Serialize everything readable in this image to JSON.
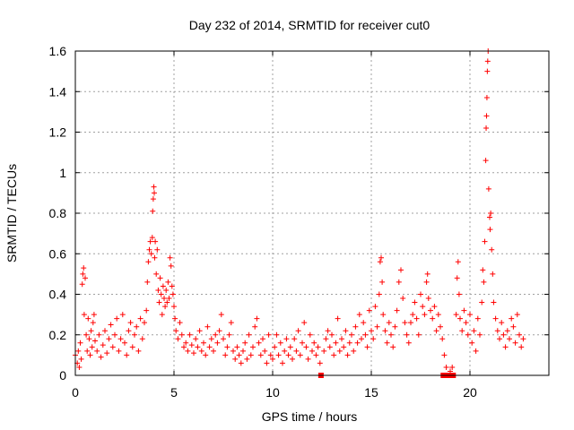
{
  "chart_data": {
    "type": "scatter",
    "title": "Day 232 of 2014, SRMTID for receiver cut0",
    "xlabel": "GPS time / hours",
    "ylabel": "SRMTID / TECUs",
    "xlim": [
      0,
      24
    ],
    "ylim": [
      0,
      1.6
    ],
    "xticks": [
      0,
      5,
      10,
      15,
      20
    ],
    "xtick_labels": [
      "0",
      "5",
      "10",
      "15",
      "20"
    ],
    "yticks": [
      0,
      0.2,
      0.4,
      0.6,
      0.8,
      1.0,
      1.2,
      1.4,
      1.6
    ],
    "ytick_labels": [
      "0",
      "0.2",
      "0.4",
      "0.6",
      "0.8",
      "1",
      "1.2",
      "1.4",
      "1.6"
    ],
    "grid": true,
    "marker": "+",
    "color": "#ff0000",
    "series": [
      {
        "name": "SRMTID",
        "points": [
          [
            0.0,
            0.1
          ],
          [
            0.1,
            0.06
          ],
          [
            0.15,
            0.12
          ],
          [
            0.2,
            0.04
          ],
          [
            0.25,
            0.16
          ],
          [
            0.3,
            0.08
          ],
          [
            0.35,
            0.45
          ],
          [
            0.38,
            0.5
          ],
          [
            0.42,
            0.53
          ],
          [
            0.45,
            0.3
          ],
          [
            0.5,
            0.48
          ],
          [
            0.55,
            0.2
          ],
          [
            0.6,
            0.12
          ],
          [
            0.65,
            0.28
          ],
          [
            0.7,
            0.18
          ],
          [
            0.75,
            0.1
          ],
          [
            0.8,
            0.22
          ],
          [
            0.85,
            0.14
          ],
          [
            0.9,
            0.26
          ],
          [
            0.95,
            0.3
          ],
          [
            1.0,
            0.17
          ],
          [
            1.1,
            0.12
          ],
          [
            1.2,
            0.2
          ],
          [
            1.3,
            0.09
          ],
          [
            1.4,
            0.15
          ],
          [
            1.5,
            0.22
          ],
          [
            1.6,
            0.11
          ],
          [
            1.7,
            0.18
          ],
          [
            1.8,
            0.25
          ],
          [
            1.9,
            0.14
          ],
          [
            2.0,
            0.2
          ],
          [
            2.1,
            0.28
          ],
          [
            2.2,
            0.12
          ],
          [
            2.3,
            0.18
          ],
          [
            2.4,
            0.3
          ],
          [
            2.5,
            0.16
          ],
          [
            2.6,
            0.1
          ],
          [
            2.7,
            0.22
          ],
          [
            2.8,
            0.26
          ],
          [
            2.9,
            0.14
          ],
          [
            3.0,
            0.2
          ],
          [
            3.1,
            0.24
          ],
          [
            3.2,
            0.12
          ],
          [
            3.3,
            0.28
          ],
          [
            3.4,
            0.18
          ],
          [
            3.5,
            0.26
          ],
          [
            3.6,
            0.32
          ],
          [
            3.65,
            0.46
          ],
          [
            3.7,
            0.56
          ],
          [
            3.75,
            0.62
          ],
          [
            3.8,
            0.66
          ],
          [
            3.85,
            0.6
          ],
          [
            3.9,
            0.68
          ],
          [
            3.92,
            0.81
          ],
          [
            3.95,
            0.87
          ],
          [
            3.98,
            0.93
          ],
          [
            4.0,
            0.9
          ],
          [
            4.02,
            0.58
          ],
          [
            4.05,
            0.66
          ],
          [
            4.1,
            0.5
          ],
          [
            4.15,
            0.62
          ],
          [
            4.2,
            0.42
          ],
          [
            4.25,
            0.36
          ],
          [
            4.3,
            0.48
          ],
          [
            4.35,
            0.4
          ],
          [
            4.4,
            0.3
          ],
          [
            4.45,
            0.44
          ],
          [
            4.5,
            0.38
          ],
          [
            4.55,
            0.34
          ],
          [
            4.6,
            0.42
          ],
          [
            4.65,
            0.36
          ],
          [
            4.7,
            0.46
          ],
          [
            4.75,
            0.38
          ],
          [
            4.8,
            0.58
          ],
          [
            4.85,
            0.54
          ],
          [
            4.9,
            0.44
          ],
          [
            4.95,
            0.4
          ],
          [
            5.0,
            0.34
          ],
          [
            5.05,
            0.28
          ],
          [
            5.1,
            0.22
          ],
          [
            5.2,
            0.18
          ],
          [
            5.3,
            0.26
          ],
          [
            5.4,
            0.2
          ],
          [
            5.5,
            0.14
          ],
          [
            5.6,
            0.16
          ],
          [
            5.7,
            0.12
          ],
          [
            5.8,
            0.2
          ],
          [
            5.9,
            0.15
          ],
          [
            6.0,
            0.11
          ],
          [
            6.1,
            0.18
          ],
          [
            6.2,
            0.14
          ],
          [
            6.3,
            0.22
          ],
          [
            6.4,
            0.12
          ],
          [
            6.5,
            0.16
          ],
          [
            6.6,
            0.1
          ],
          [
            6.7,
            0.24
          ],
          [
            6.8,
            0.14
          ],
          [
            6.9,
            0.18
          ],
          [
            7.0,
            0.12
          ],
          [
            7.1,
            0.2
          ],
          [
            7.2,
            0.16
          ],
          [
            7.3,
            0.22
          ],
          [
            7.4,
            0.3
          ],
          [
            7.5,
            0.18
          ],
          [
            7.6,
            0.1
          ],
          [
            7.7,
            0.14
          ],
          [
            7.8,
            0.2
          ],
          [
            7.9,
            0.26
          ],
          [
            8.0,
            0.12
          ],
          [
            8.1,
            0.08
          ],
          [
            8.2,
            0.14
          ],
          [
            8.3,
            0.1
          ],
          [
            8.4,
            0.06
          ],
          [
            8.5,
            0.12
          ],
          [
            8.6,
            0.16
          ],
          [
            8.7,
            0.08
          ],
          [
            8.8,
            0.2
          ],
          [
            8.9,
            0.1
          ],
          [
            9.0,
            0.14
          ],
          [
            9.1,
            0.24
          ],
          [
            9.2,
            0.28
          ],
          [
            9.3,
            0.16
          ],
          [
            9.4,
            0.1
          ],
          [
            9.5,
            0.18
          ],
          [
            9.6,
            0.12
          ],
          [
            9.7,
            0.06
          ],
          [
            9.8,
            0.2
          ],
          [
            9.9,
            0.1
          ],
          [
            10.0,
            0.08
          ],
          [
            10.1,
            0.14
          ],
          [
            10.2,
            0.2
          ],
          [
            10.3,
            0.1
          ],
          [
            10.4,
            0.16
          ],
          [
            10.5,
            0.06
          ],
          [
            10.6,
            0.12
          ],
          [
            10.7,
            0.18
          ],
          [
            10.8,
            0.1
          ],
          [
            10.9,
            0.14
          ],
          [
            11.0,
            0.08
          ],
          [
            11.1,
            0.18
          ],
          [
            11.2,
            0.12
          ],
          [
            11.3,
            0.22
          ],
          [
            11.4,
            0.1
          ],
          [
            11.5,
            0.16
          ],
          [
            11.6,
            0.26
          ],
          [
            11.7,
            0.14
          ],
          [
            11.8,
            0.08
          ],
          [
            11.9,
            0.2
          ],
          [
            12.0,
            0.12
          ],
          [
            12.1,
            0.16
          ],
          [
            12.2,
            0.1
          ],
          [
            12.3,
            0.14
          ],
          [
            12.4,
            0.06
          ],
          [
            12.6,
            0.12
          ],
          [
            12.7,
            0.18
          ],
          [
            12.8,
            0.22
          ],
          [
            12.9,
            0.14
          ],
          [
            13.0,
            0.2
          ],
          [
            13.1,
            0.1
          ],
          [
            13.2,
            0.16
          ],
          [
            13.3,
            0.28
          ],
          [
            13.4,
            0.12
          ],
          [
            13.5,
            0.18
          ],
          [
            13.6,
            0.14
          ],
          [
            13.7,
            0.22
          ],
          [
            13.8,
            0.1
          ],
          [
            13.9,
            0.16
          ],
          [
            14.0,
            0.2
          ],
          [
            14.1,
            0.12
          ],
          [
            14.2,
            0.24
          ],
          [
            14.3,
            0.16
          ],
          [
            14.4,
            0.3
          ],
          [
            14.5,
            0.18
          ],
          [
            14.6,
            0.26
          ],
          [
            14.7,
            0.2
          ],
          [
            14.8,
            0.14
          ],
          [
            14.9,
            0.32
          ],
          [
            15.0,
            0.22
          ],
          [
            15.1,
            0.18
          ],
          [
            15.2,
            0.34
          ],
          [
            15.3,
            0.24
          ],
          [
            15.4,
            0.4
          ],
          [
            15.45,
            0.56
          ],
          [
            15.5,
            0.58
          ],
          [
            15.55,
            0.46
          ],
          [
            15.6,
            0.3
          ],
          [
            15.7,
            0.22
          ],
          [
            15.8,
            0.16
          ],
          [
            15.9,
            0.26
          ],
          [
            16.0,
            0.2
          ],
          [
            16.1,
            0.14
          ],
          [
            16.2,
            0.24
          ],
          [
            16.3,
            0.32
          ],
          [
            16.4,
            0.46
          ],
          [
            16.5,
            0.52
          ],
          [
            16.6,
            0.38
          ],
          [
            16.7,
            0.26
          ],
          [
            16.8,
            0.2
          ],
          [
            16.9,
            0.16
          ],
          [
            17.0,
            0.26
          ],
          [
            17.1,
            0.3
          ],
          [
            17.2,
            0.36
          ],
          [
            17.3,
            0.28
          ],
          [
            17.4,
            0.2
          ],
          [
            17.5,
            0.4
          ],
          [
            17.6,
            0.34
          ],
          [
            17.7,
            0.3
          ],
          [
            17.8,
            0.46
          ],
          [
            17.85,
            0.5
          ],
          [
            17.9,
            0.38
          ],
          [
            18.0,
            0.32
          ],
          [
            18.1,
            0.28
          ],
          [
            18.2,
            0.34
          ],
          [
            18.3,
            0.22
          ],
          [
            18.4,
            0.3
          ],
          [
            18.5,
            0.24
          ],
          [
            18.6,
            0.18
          ],
          [
            18.7,
            0.1
          ],
          [
            18.8,
            0.04
          ],
          [
            19.0,
            0.02
          ],
          [
            19.1,
            0.04
          ],
          [
            19.3,
            0.3
          ],
          [
            19.35,
            0.48
          ],
          [
            19.4,
            0.56
          ],
          [
            19.45,
            0.4
          ],
          [
            19.5,
            0.28
          ],
          [
            19.6,
            0.22
          ],
          [
            19.7,
            0.32
          ],
          [
            19.8,
            0.26
          ],
          [
            19.9,
            0.2
          ],
          [
            20.0,
            0.3
          ],
          [
            20.1,
            0.16
          ],
          [
            20.2,
            0.22
          ],
          [
            20.3,
            0.12
          ],
          [
            20.4,
            0.28
          ],
          [
            20.5,
            0.2
          ],
          [
            20.6,
            0.36
          ],
          [
            20.65,
            0.52
          ],
          [
            20.7,
            0.46
          ],
          [
            20.75,
            0.66
          ],
          [
            20.8,
            1.06
          ],
          [
            20.82,
            1.22
          ],
          [
            20.84,
            1.28
          ],
          [
            20.86,
            1.37
          ],
          [
            20.88,
            1.5
          ],
          [
            20.9,
            1.55
          ],
          [
            20.92,
            1.6
          ],
          [
            20.95,
            0.92
          ],
          [
            21.0,
            0.78
          ],
          [
            21.02,
            0.72
          ],
          [
            21.05,
            0.8
          ],
          [
            21.1,
            0.62
          ],
          [
            21.15,
            0.5
          ],
          [
            21.2,
            0.36
          ],
          [
            21.3,
            0.28
          ],
          [
            21.4,
            0.22
          ],
          [
            21.5,
            0.18
          ],
          [
            21.6,
            0.26
          ],
          [
            21.7,
            0.2
          ],
          [
            21.8,
            0.14
          ],
          [
            21.9,
            0.22
          ],
          [
            22.0,
            0.18
          ],
          [
            22.1,
            0.28
          ],
          [
            22.2,
            0.24
          ],
          [
            22.3,
            0.16
          ],
          [
            22.4,
            0.3
          ],
          [
            22.5,
            0.2
          ],
          [
            22.6,
            0.14
          ],
          [
            22.7,
            0.18
          ]
        ]
      }
    ],
    "zero_markers_x": [
      12.45,
      18.65,
      18.75,
      18.85,
      18.95,
      19.05,
      19.15
    ]
  }
}
